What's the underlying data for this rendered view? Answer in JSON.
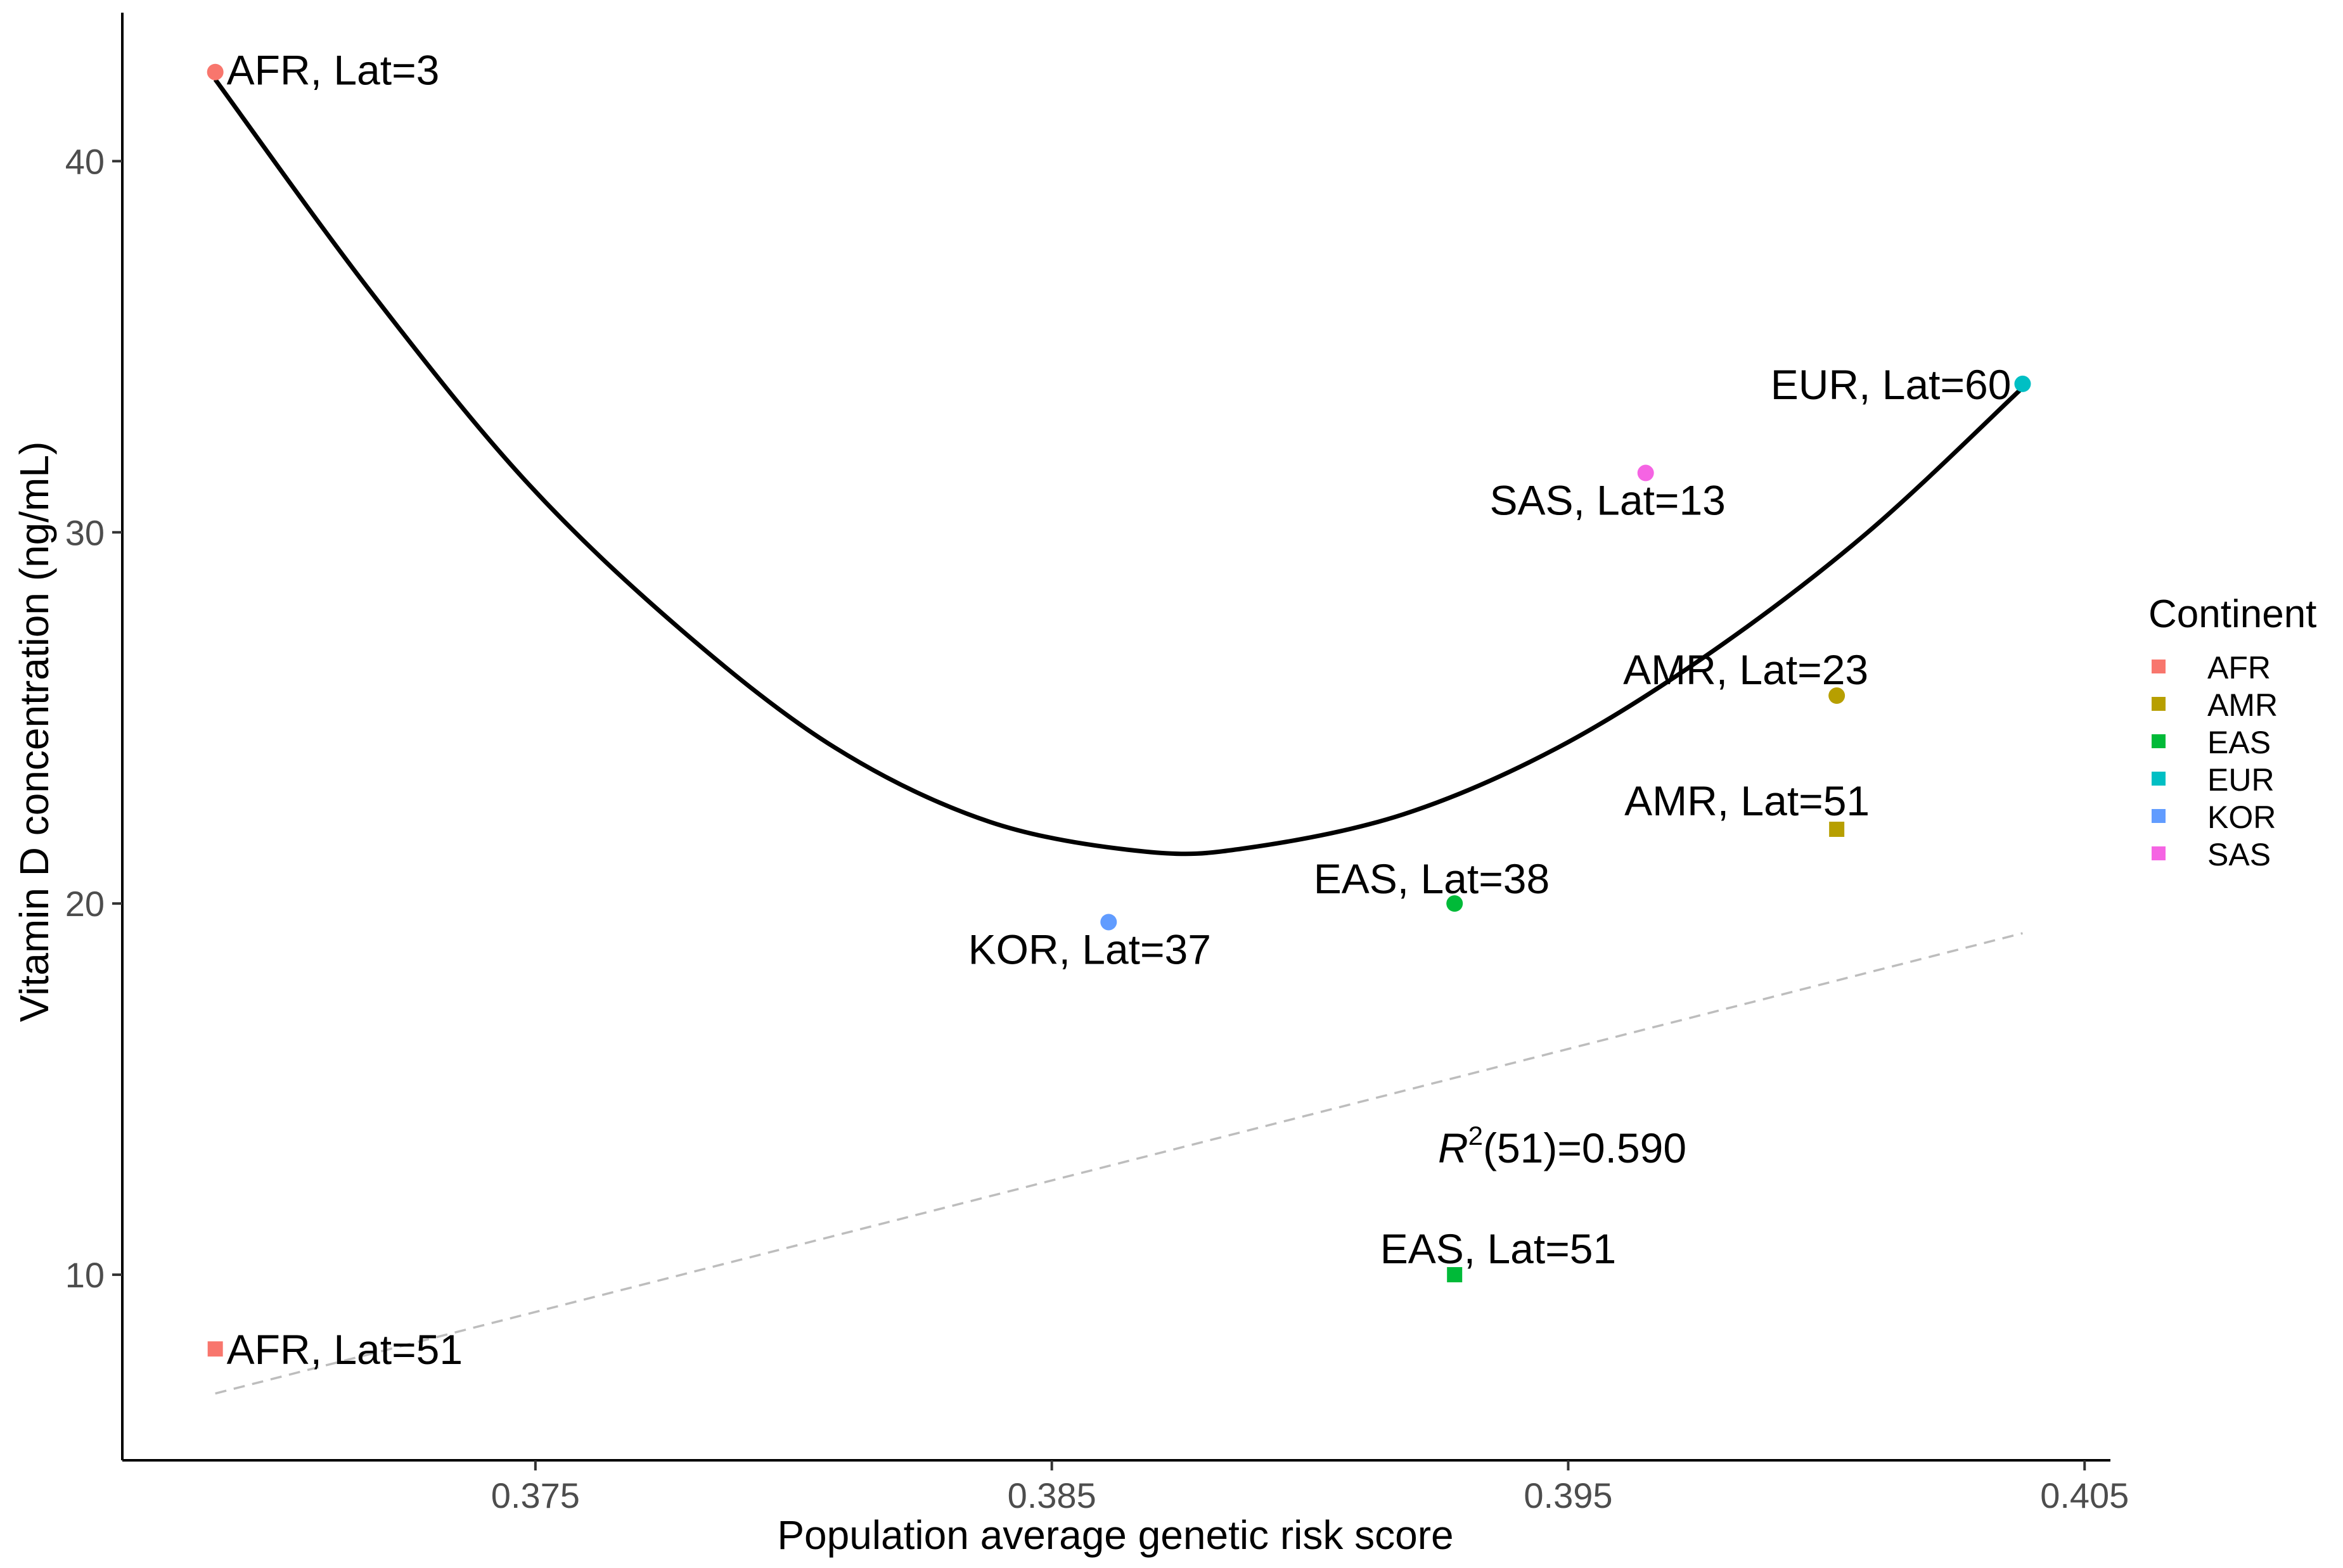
{
  "chart_data": {
    "type": "scatter",
    "title": "",
    "xlabel": "Population average genetic risk score",
    "ylabel": "Vitamin D concentration (ng/mL)",
    "xlim": [
      0.367,
      0.4055
    ],
    "ylim": [
      5,
      44
    ],
    "x_ticks": [
      0.375,
      0.385,
      0.395,
      0.405
    ],
    "x_tick_labels": [
      "0.375",
      "0.385",
      "0.395",
      "0.405"
    ],
    "y_ticks": [
      10,
      20,
      30,
      40
    ],
    "y_tick_labels": [
      "10",
      "20",
      "30",
      "40"
    ],
    "grid": false,
    "points": [
      {
        "label": "AFR, Lat=3",
        "continent": "AFR",
        "shape": "circle",
        "x": 0.3688,
        "y": 42.4
      },
      {
        "label": "AFR, Lat=51",
        "continent": "AFR",
        "shape": "square",
        "x": 0.3688,
        "y": 8.0
      },
      {
        "label": "AMR, Lat=23",
        "continent": "AMR",
        "shape": "circle",
        "x": 0.4002,
        "y": 25.6
      },
      {
        "label": "AMR, Lat=51",
        "continent": "AMR",
        "shape": "square",
        "x": 0.4002,
        "y": 22.0
      },
      {
        "label": "EAS, Lat=38",
        "continent": "EAS",
        "shape": "circle",
        "x": 0.3928,
        "y": 20.0
      },
      {
        "label": "EAS, Lat=51",
        "continent": "EAS",
        "shape": "square",
        "x": 0.3928,
        "y": 10.0
      },
      {
        "label": "EUR, Lat=60",
        "continent": "EUR",
        "shape": "circle",
        "x": 0.4038,
        "y": 34.0
      },
      {
        "label": "KOR, Lat=37",
        "continent": "KOR",
        "shape": "circle",
        "x": 0.3861,
        "y": 19.5
      },
      {
        "label": "SAS, Lat=13",
        "continent": "SAS",
        "shape": "circle",
        "x": 0.3965,
        "y": 31.6
      }
    ],
    "series": [
      {
        "name": "quadratic fit",
        "style": "solid",
        "color": "#000000",
        "x": [
          0.3688,
          0.3718,
          0.3748,
          0.3778,
          0.3808,
          0.3838,
          0.3868,
          0.3888,
          0.3918,
          0.3948,
          0.3978,
          0.4008,
          0.4038
        ],
        "y": [
          42.2,
          36.5,
          31.4,
          27.4,
          24.2,
          22.2,
          21.4,
          21.5,
          22.4,
          24.2,
          26.8,
          30.0,
          33.9
        ]
      },
      {
        "name": "linear fit",
        "style": "dashed",
        "color": "#bdbdbd",
        "x": [
          0.3688,
          0.4038
        ],
        "y": [
          6.8,
          19.2
        ]
      }
    ],
    "annotation": {
      "prefix": "R",
      "superscript": "2",
      "text": "(51)=0.590",
      "x": 0.3955,
      "y": 13.4
    },
    "legend": {
      "title": "Continent",
      "position": "right",
      "entries": [
        {
          "name": "AFR",
          "color": "#F8766D"
        },
        {
          "name": "AMR",
          "color": "#B79F00"
        },
        {
          "name": "EAS",
          "color": "#00BA38"
        },
        {
          "name": "EUR",
          "color": "#00BFC4"
        },
        {
          "name": "KOR",
          "color": "#619CFF"
        },
        {
          "name": "SAS",
          "color": "#F564E3"
        }
      ]
    }
  }
}
